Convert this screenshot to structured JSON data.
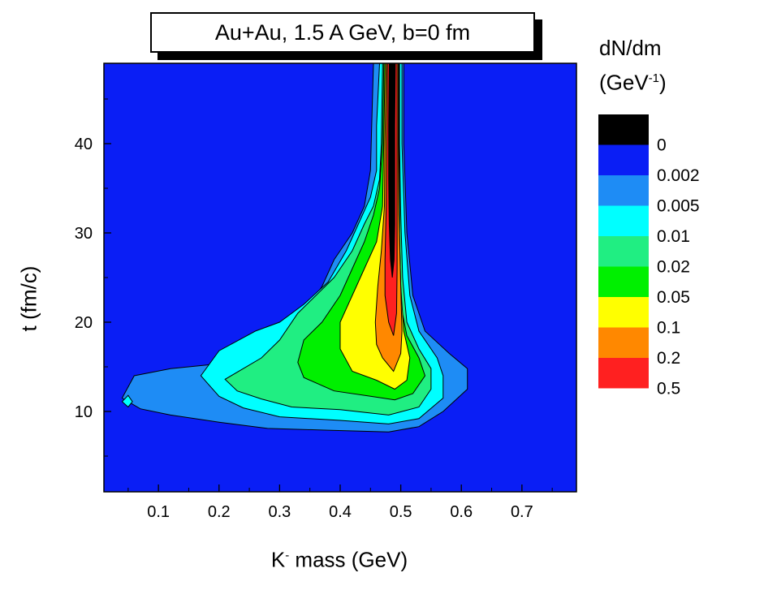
{
  "title": "Au+Au, 1.5 A GeV, b=0 fm",
  "legend_title": {
    "line1": "dN/dm",
    "line2_prefix": "(GeV",
    "line2_exp": "-1",
    "line2_suffix": ")"
  },
  "colors": {
    "background": "#0a1ef5",
    "levels": [
      "#0a1ef5",
      "#1e8cf5",
      "#00ffff",
      "#20ee82",
      "#00f000",
      "#ffff00",
      "#ff8800",
      "#ff2020",
      "#000000"
    ],
    "line": "#000000"
  },
  "chart_data": {
    "type": "heatmap",
    "subtype": "filled-contour",
    "title": "Au+Au, 1.5 A GeV, b=0 fm",
    "xlabel": "K- mass (GeV)",
    "xlabel_parts": {
      "base": "K",
      "sup": "-",
      "rest": " mass (GeV)"
    },
    "ylabel": "t (fm/c)",
    "colorbar_label": "dN/dm (GeV-1)",
    "xlim": [
      0.01,
      0.79
    ],
    "ylim": [
      1,
      49
    ],
    "xticks": [
      0.1,
      0.2,
      0.3,
      0.4,
      0.5,
      0.6,
      0.7
    ],
    "xtick_labels": [
      "0.1",
      "0.2",
      "0.3",
      "0.4",
      "0.5",
      "0.6",
      "0.7"
    ],
    "yticks": [
      10,
      20,
      30,
      40
    ],
    "ytick_labels": [
      "10",
      "20",
      "30",
      "40"
    ],
    "legend_levels": [
      "0",
      "0.002",
      "0.005",
      "0.01",
      "0.02",
      "0.05",
      "0.1",
      "0.2",
      "0.5"
    ],
    "grid": false,
    "legend_position": "right",
    "contours": [
      {
        "level": 0.002,
        "points": [
          [
            0.455,
            49
          ],
          [
            0.452,
            42
          ],
          [
            0.45,
            37
          ],
          [
            0.44,
            33
          ],
          [
            0.42,
            30
          ],
          [
            0.39,
            27
          ],
          [
            0.37,
            24
          ],
          [
            0.34,
            21
          ],
          [
            0.31,
            18
          ],
          [
            0.27,
            17
          ],
          [
            0.23,
            16
          ],
          [
            0.18,
            15.2
          ],
          [
            0.12,
            14.8
          ],
          [
            0.06,
            14
          ],
          [
            0.04,
            11.5
          ],
          [
            0.07,
            10.3
          ],
          [
            0.12,
            9.6
          ],
          [
            0.2,
            8.8
          ],
          [
            0.28,
            8.1
          ],
          [
            0.38,
            7.9
          ],
          [
            0.48,
            7.7
          ],
          [
            0.53,
            8.3
          ],
          [
            0.57,
            10
          ],
          [
            0.61,
            12.5
          ],
          [
            0.61,
            14.8
          ],
          [
            0.58,
            16.5
          ],
          [
            0.54,
            19
          ],
          [
            0.52,
            23
          ],
          [
            0.51,
            30
          ],
          [
            0.505,
            40
          ],
          [
            0.505,
            49
          ]
        ]
      },
      {
        "level": 0.005,
        "points": [
          [
            0.465,
            49
          ],
          [
            0.46,
            42
          ],
          [
            0.46,
            37
          ],
          [
            0.45,
            34
          ],
          [
            0.43,
            31
          ],
          [
            0.41,
            28
          ],
          [
            0.38,
            24.5
          ],
          [
            0.34,
            22
          ],
          [
            0.3,
            20
          ],
          [
            0.26,
            19
          ],
          [
            0.2,
            16.8
          ],
          [
            0.17,
            14
          ],
          [
            0.2,
            11.7
          ],
          [
            0.24,
            10.4
          ],
          [
            0.3,
            9.4
          ],
          [
            0.4,
            9
          ],
          [
            0.48,
            8.6
          ],
          [
            0.53,
            9.2
          ],
          [
            0.57,
            11.5
          ],
          [
            0.57,
            14
          ],
          [
            0.56,
            16
          ],
          [
            0.53,
            19
          ],
          [
            0.515,
            23
          ],
          [
            0.507,
            30
          ],
          [
            0.502,
            40
          ],
          [
            0.502,
            49
          ]
        ]
      },
      {
        "level": 0.01,
        "points": [
          [
            0.47,
            49
          ],
          [
            0.468,
            40
          ],
          [
            0.465,
            36
          ],
          [
            0.455,
            33
          ],
          [
            0.44,
            31
          ],
          [
            0.42,
            28
          ],
          [
            0.39,
            25
          ],
          [
            0.36,
            23
          ],
          [
            0.33,
            21
          ],
          [
            0.3,
            18
          ],
          [
            0.27,
            16
          ],
          [
            0.21,
            13.6
          ],
          [
            0.23,
            12.3
          ],
          [
            0.27,
            11.4
          ],
          [
            0.32,
            10.5
          ],
          [
            0.4,
            10.2
          ],
          [
            0.48,
            9.6
          ],
          [
            0.53,
            10.5
          ],
          [
            0.55,
            12.5
          ],
          [
            0.55,
            14.8
          ],
          [
            0.53,
            17
          ],
          [
            0.51,
            20
          ],
          [
            0.503,
            25
          ],
          [
            0.5,
            32
          ],
          [
            0.498,
            40
          ],
          [
            0.498,
            49
          ]
        ]
      },
      {
        "level": 0.02,
        "points": [
          [
            0.472,
            49
          ],
          [
            0.47,
            40
          ],
          [
            0.465,
            35
          ],
          [
            0.455,
            32
          ],
          [
            0.44,
            29
          ],
          [
            0.42,
            26
          ],
          [
            0.4,
            23
          ],
          [
            0.37,
            20
          ],
          [
            0.34,
            18
          ],
          [
            0.33,
            15.5
          ],
          [
            0.34,
            13.8
          ],
          [
            0.39,
            12.3
          ],
          [
            0.45,
            11.7
          ],
          [
            0.49,
            11.3
          ],
          [
            0.52,
            12
          ],
          [
            0.54,
            14
          ],
          [
            0.53,
            16
          ],
          [
            0.51,
            18.5
          ],
          [
            0.5,
            22
          ],
          [
            0.498,
            30
          ],
          [
            0.497,
            40
          ],
          [
            0.497,
            49
          ]
        ]
      },
      {
        "level": 0.05,
        "points": [
          [
            0.474,
            49
          ],
          [
            0.472,
            40
          ],
          [
            0.47,
            33
          ],
          [
            0.46,
            29
          ],
          [
            0.44,
            26
          ],
          [
            0.42,
            23
          ],
          [
            0.4,
            20
          ],
          [
            0.4,
            17
          ],
          [
            0.42,
            14.5
          ],
          [
            0.46,
            13.5
          ],
          [
            0.49,
            12.5
          ],
          [
            0.51,
            13.5
          ],
          [
            0.515,
            16
          ],
          [
            0.505,
            19
          ],
          [
            0.5,
            24
          ],
          [
            0.497,
            32
          ],
          [
            0.496,
            40
          ],
          [
            0.496,
            49
          ]
        ]
      },
      {
        "level": 0.1,
        "points": [
          [
            0.476,
            49
          ],
          [
            0.474,
            40
          ],
          [
            0.473,
            33
          ],
          [
            0.468,
            28
          ],
          [
            0.462,
            24
          ],
          [
            0.458,
            20
          ],
          [
            0.46,
            17.5
          ],
          [
            0.47,
            16
          ],
          [
            0.488,
            14.5
          ],
          [
            0.5,
            16.5
          ],
          [
            0.502,
            19
          ],
          [
            0.5,
            24
          ],
          [
            0.497,
            32
          ],
          [
            0.496,
            40
          ],
          [
            0.496,
            49
          ]
        ]
      },
      {
        "level": 0.2,
        "points": [
          [
            0.478,
            49
          ],
          [
            0.477,
            40
          ],
          [
            0.476,
            33
          ],
          [
            0.474,
            27
          ],
          [
            0.474,
            23
          ],
          [
            0.48,
            20
          ],
          [
            0.488,
            18.5
          ],
          [
            0.493,
            21
          ],
          [
            0.494,
            26
          ],
          [
            0.494,
            33
          ],
          [
            0.494,
            40
          ],
          [
            0.494,
            49
          ]
        ]
      },
      {
        "level": 0.5,
        "points": [
          [
            0.481,
            49
          ],
          [
            0.48,
            42
          ],
          [
            0.48,
            36
          ],
          [
            0.481,
            31
          ],
          [
            0.483,
            27
          ],
          [
            0.486,
            25
          ],
          [
            0.489,
            27
          ],
          [
            0.49,
            31
          ],
          [
            0.49,
            36
          ],
          [
            0.49,
            42
          ],
          [
            0.491,
            49
          ]
        ]
      },
      {
        "level": 1.0,
        "points": [
          [
            0.4845,
            49
          ],
          [
            0.4845,
            42
          ],
          [
            0.485,
            37
          ],
          [
            0.486,
            32
          ],
          [
            0.487,
            26
          ],
          [
            0.4875,
            32
          ],
          [
            0.488,
            37
          ],
          [
            0.4885,
            42
          ],
          [
            0.4885,
            49
          ]
        ]
      }
    ],
    "small_features": [
      {
        "level": 0.005,
        "points": [
          [
            0.05,
            11.8
          ],
          [
            0.04,
            11.1
          ],
          [
            0.05,
            10.5
          ],
          [
            0.057,
            11.1
          ]
        ]
      }
    ]
  }
}
